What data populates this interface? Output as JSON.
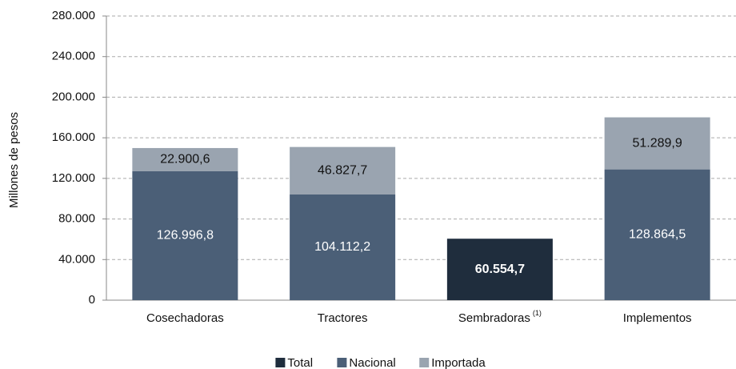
{
  "chart_data": {
    "type": "stacked_bar",
    "y_label": "Millones de pesos",
    "categories": [
      "Cosechadoras",
      "Tractores",
      "Sembradoras",
      "Implementos"
    ],
    "category_notes": [
      null,
      null,
      "(1)",
      null
    ],
    "series": [
      {
        "name": "Total",
        "color": "#1f2d3d",
        "label_color": "#ffffff",
        "label_bold": true,
        "values": [
          null,
          null,
          60554.7,
          null
        ],
        "value_labels": [
          null,
          null,
          "60.554,7",
          null
        ]
      },
      {
        "name": "Nacional",
        "color": "#4b5f77",
        "label_color": "#ffffff",
        "label_bold": false,
        "values": [
          126996.8,
          104112.2,
          null,
          128864.5
        ],
        "value_labels": [
          "126.996,8",
          "104.112,2",
          null,
          "128.864,5"
        ]
      },
      {
        "name": "Importada",
        "color": "#9aa4b0",
        "label_color": "#111111",
        "label_bold": false,
        "values": [
          22900.6,
          46827.7,
          null,
          51289.9
        ],
        "value_labels": [
          "22.900,6",
          "46.827,7",
          null,
          "51.289,9"
        ]
      }
    ],
    "ylim": [
      0,
      280000
    ],
    "yticks": [
      0,
      {
        "value": 40000,
        "label": "40.000"
      },
      {
        "value": 80000,
        "label": "80.000"
      },
      {
        "value": 120000,
        "label": "120.000"
      },
      {
        "value": 160000,
        "label": "160.000"
      },
      {
        "value": 200000,
        "label": "200.000"
      },
      {
        "value": 240000,
        "label": "240.000"
      },
      {
        "value": 280000,
        "label": "280.000"
      }
    ],
    "grid": true,
    "legend": "bottom"
  }
}
